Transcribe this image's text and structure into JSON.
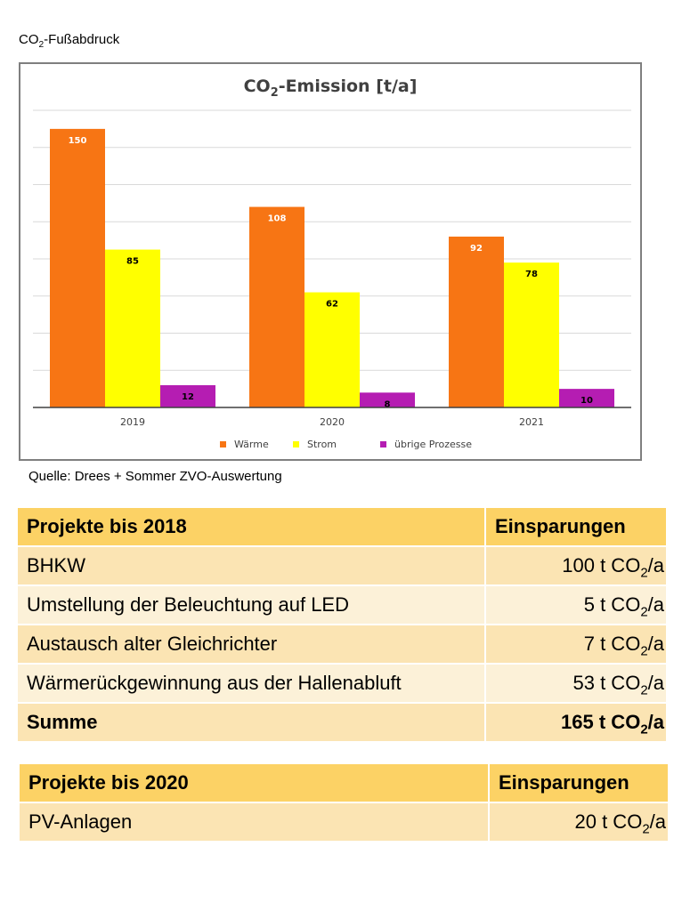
{
  "page": {
    "heading_prefix": "CO",
    "heading_sub": "2",
    "heading_suffix": "-Fußabdruck",
    "source": "Quelle: Drees + Sommer ZVO-Auswertung"
  },
  "chart_data": {
    "type": "bar",
    "title_prefix": "CO",
    "title_sub": "2",
    "title_suffix": "-Emission [t/a]",
    "categories": [
      "2019",
      "2020",
      "2021"
    ],
    "series": [
      {
        "name": "Wärme",
        "values": [
          150,
          108,
          92
        ],
        "color": "#f77514"
      },
      {
        "name": "Strom",
        "values": [
          85,
          62,
          78
        ],
        "color": "#ffff00"
      },
      {
        "name": "übrige Prozesse",
        "values": [
          12,
          8,
          10
        ],
        "color": "#b51db2"
      }
    ],
    "ylim": [
      0,
      160
    ],
    "gridlines": true,
    "y_tick_labels_visible": false,
    "legend_position": "bottom"
  },
  "tables": [
    {
      "header": {
        "label": "Projekte bis 2018",
        "value": "Einsparungen"
      },
      "rows": [
        {
          "label": "BHKW",
          "amount": "100 t CO",
          "sub": "2",
          "unit": "/a"
        },
        {
          "label": "Umstellung der Beleuchtung auf LED",
          "amount": "5 t CO",
          "sub": "2",
          "unit": "/a"
        },
        {
          "label": "Austausch alter Gleichrichter",
          "amount": "7 t CO",
          "sub": "2",
          "unit": "/a"
        },
        {
          "label": "Wärmerückgewinnung aus der Hallenabluft",
          "amount": "53 t CO",
          "sub": "2",
          "unit": "/a"
        }
      ],
      "total": {
        "label": "Summe",
        "amount": "165 t CO",
        "sub": "2",
        "unit": "/a"
      }
    },
    {
      "header": {
        "label": "Projekte bis 2020",
        "value": "Einsparungen"
      },
      "rows": [
        {
          "label": "PV-Anlagen",
          "amount": "20 t CO",
          "sub": "2",
          "unit": "/a"
        }
      ]
    }
  ]
}
